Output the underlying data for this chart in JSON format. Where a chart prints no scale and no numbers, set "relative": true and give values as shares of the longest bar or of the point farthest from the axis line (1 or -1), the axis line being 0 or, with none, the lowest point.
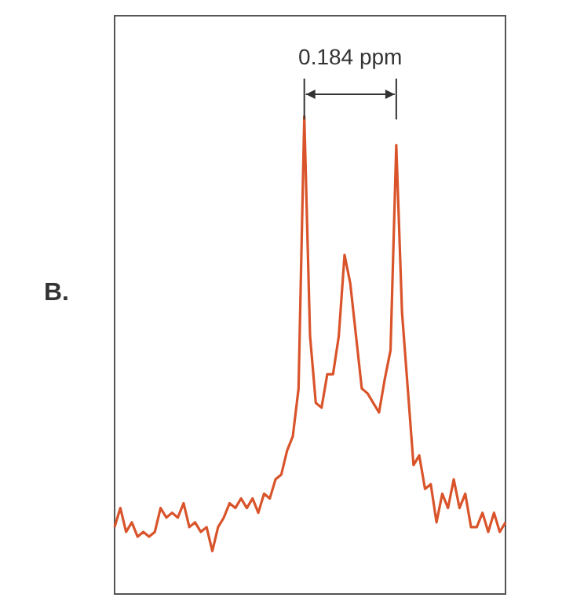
{
  "chart_data": {
    "type": "line",
    "relative": true,
    "grid": false,
    "marker": "none",
    "line_style": "solid",
    "annotations": [
      "0.184 ppm",
      "B."
    ],
    "categories": [
      null,
      null,
      null,
      null,
      null,
      null,
      null,
      null,
      null,
      null,
      null,
      null,
      null,
      null,
      null,
      null,
      null,
      null,
      null,
      null,
      null,
      null,
      null,
      null,
      null,
      null,
      null,
      null,
      null,
      null,
      null,
      null,
      null,
      null,
      null,
      null,
      null,
      null,
      null,
      null,
      null,
      null,
      null,
      null,
      null,
      null,
      null,
      null,
      null,
      null,
      null,
      null,
      null,
      null,
      null,
      null,
      null,
      null,
      null,
      null,
      null,
      null,
      null,
      null,
      null,
      null,
      null,
      null,
      null
    ],
    "series": [
      {
        "color": "#d9542b",
        "values": [
          0.14,
          0.18,
          0.13,
          0.15,
          0.12,
          0.13,
          0.12,
          0.13,
          0.18,
          0.16,
          0.17,
          0.16,
          0.19,
          0.14,
          0.15,
          0.13,
          0.14,
          0.09,
          0.14,
          0.16,
          0.19,
          0.18,
          0.2,
          0.18,
          0.2,
          0.17,
          0.21,
          0.2,
          0.24,
          0.25,
          0.3,
          0.33,
          0.43,
          1,
          0.54,
          0.4,
          0.39,
          0.46,
          0.46,
          0.54,
          0.71,
          0.65,
          0.54,
          0.43,
          0.42,
          0.4,
          0.38,
          0.45,
          0.51,
          0.94,
          0.59,
          0.43,
          0.27,
          0.29,
          0.22,
          0.23,
          0.15,
          0.21,
          0.18,
          0.24,
          0.18,
          0.21,
          0.14,
          0.14,
          0.17,
          0.13,
          0.17,
          0.13,
          0.15
        ]
      }
    ]
  }
}
